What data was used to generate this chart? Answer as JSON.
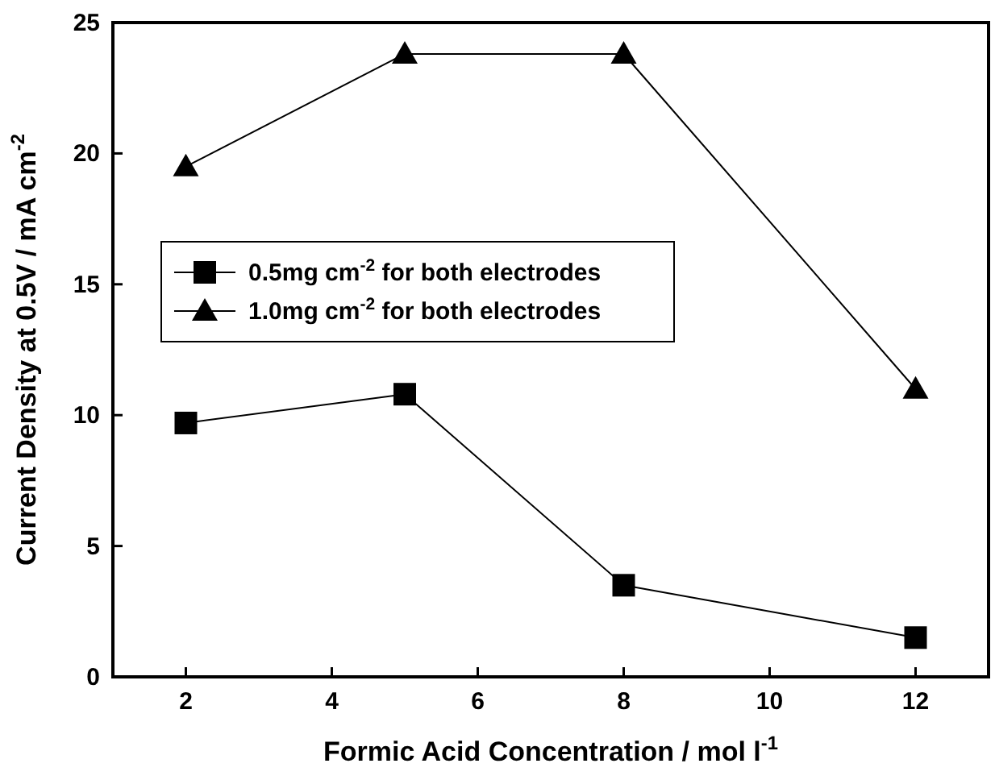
{
  "chart_data": {
    "type": "line",
    "xlabel": "Formic Acid Concentration / mol l$^{-1}$",
    "ylabel": "Current Density at 0.5V / mA cm$^{-2}$",
    "x": [
      2,
      5,
      8,
      12
    ],
    "xlim": [
      1,
      13
    ],
    "xticks": [
      2,
      4,
      6,
      8,
      10,
      12
    ],
    "ylim": [
      0,
      25
    ],
    "yticks": [
      0,
      5,
      10,
      15,
      20,
      25
    ],
    "grid": false,
    "legend": "left",
    "series": [
      {
        "name": "0.5mg cm$^{-2}$ for both electrodes",
        "color": "#000000",
        "marker": "square",
        "values": [
          9.7,
          10.8,
          3.5,
          1.5
        ]
      },
      {
        "name": "1.0mg cm$^{-2}$ for both electrodes",
        "color": "#000000",
        "marker": "triangle",
        "values": [
          19.5,
          23.8,
          23.8,
          11.0
        ]
      }
    ]
  }
}
